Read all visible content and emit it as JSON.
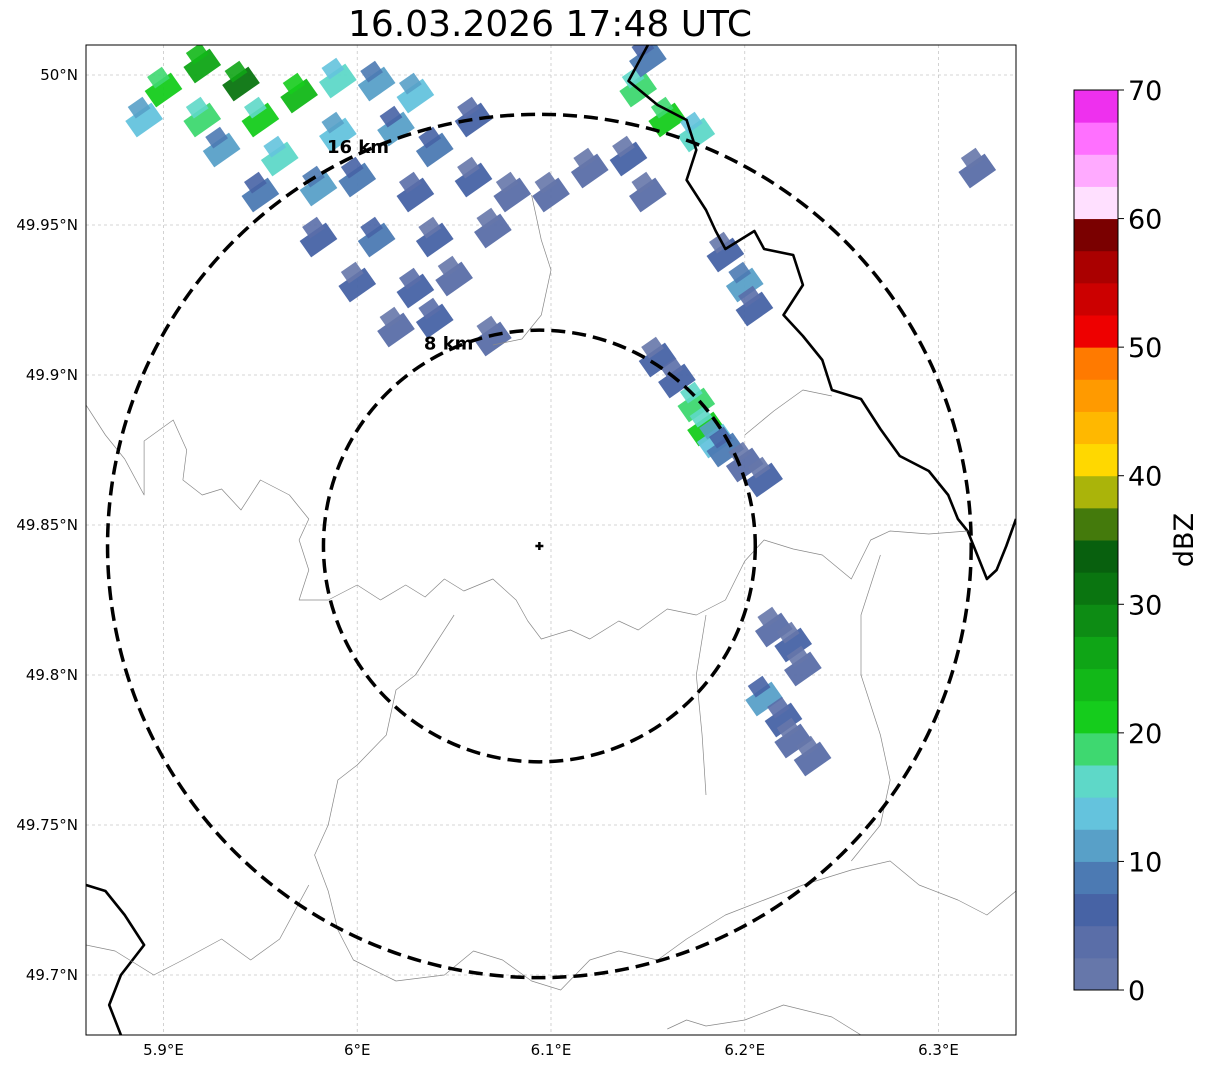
{
  "title": "16.03.2026 17:48 UTC",
  "map": {
    "lon_range": [
      5.86,
      6.34
    ],
    "lat_range": [
      49.68,
      50.01
    ],
    "radar_site": {
      "lon": 6.094,
      "lat": 49.843
    },
    "range_rings": [
      {
        "label": "8 km",
        "radius_km": 8
      },
      {
        "label": "16 km",
        "radius_km": 16
      }
    ],
    "lon_ticks": [
      {
        "value": 5.9,
        "label": "5.9°E"
      },
      {
        "value": 6.0,
        "label": "6°E"
      },
      {
        "value": 6.1,
        "label": "6.1°E"
      },
      {
        "value": 6.2,
        "label": "6.2°E"
      },
      {
        "value": 6.3,
        "label": "6.3°E"
      }
    ],
    "lat_ticks": [
      {
        "value": 50.0,
        "label": "50°N"
      },
      {
        "value": 49.95,
        "label": "49.95°N"
      },
      {
        "value": 49.9,
        "label": "49.9°N"
      },
      {
        "value": 49.85,
        "label": "49.85°N"
      },
      {
        "value": 49.8,
        "label": "49.8°N"
      },
      {
        "value": 49.75,
        "label": "49.75°N"
      },
      {
        "value": 49.7,
        "label": "49.7°N"
      }
    ],
    "grid": true
  },
  "colorbar": {
    "label": "dBZ",
    "min": 0,
    "max": 70,
    "step": 2.5,
    "tick_labels": [
      "0",
      "10",
      "20",
      "30",
      "40",
      "50",
      "60",
      "70"
    ],
    "colors": [
      "#6677aa",
      "#5a6ea8",
      "#4763a5",
      "#4c7ab3",
      "#58a0c8",
      "#64c3dd",
      "#5ed8c8",
      "#3ed870",
      "#15cc1c",
      "#12b818",
      "#0fa516",
      "#0d8c14",
      "#0a7510",
      "#08600e",
      "#447a0c",
      "#aab40a",
      "#ffd800",
      "#ffb800",
      "#ff9a00",
      "#ff7a00",
      "#ee0000",
      "#cc0000",
      "#aa0000",
      "#7a0000",
      "#ffe0ff",
      "#ffaaff",
      "#ff70ff",
      "#ee30ee"
    ]
  },
  "reflectivity_cells": [
    {
      "lon": 5.9,
      "lat": 49.995,
      "dbz": 22
    },
    {
      "lon": 5.92,
      "lat": 50.003,
      "dbz": 26
    },
    {
      "lon": 5.94,
      "lat": 49.997,
      "dbz": 30
    },
    {
      "lon": 5.89,
      "lat": 49.985,
      "dbz": 14
    },
    {
      "lon": 5.92,
      "lat": 49.985,
      "dbz": 18
    },
    {
      "lon": 5.95,
      "lat": 49.985,
      "dbz": 20
    },
    {
      "lon": 5.97,
      "lat": 49.993,
      "dbz": 24
    },
    {
      "lon": 5.99,
      "lat": 49.998,
      "dbz": 16
    },
    {
      "lon": 6.01,
      "lat": 49.997,
      "dbz": 12
    },
    {
      "lon": 6.03,
      "lat": 49.993,
      "dbz": 14
    },
    {
      "lon": 5.93,
      "lat": 49.975,
      "dbz": 12
    },
    {
      "lon": 5.96,
      "lat": 49.972,
      "dbz": 16
    },
    {
      "lon": 5.99,
      "lat": 49.98,
      "dbz": 14
    },
    {
      "lon": 6.02,
      "lat": 49.982,
      "dbz": 10
    },
    {
      "lon": 6.04,
      "lat": 49.975,
      "dbz": 8
    },
    {
      "lon": 6.06,
      "lat": 49.985,
      "dbz": 6
    },
    {
      "lon": 5.95,
      "lat": 49.96,
      "dbz": 8
    },
    {
      "lon": 5.98,
      "lat": 49.962,
      "dbz": 12
    },
    {
      "lon": 6.0,
      "lat": 49.965,
      "dbz": 8
    },
    {
      "lon": 6.03,
      "lat": 49.96,
      "dbz": 6
    },
    {
      "lon": 6.06,
      "lat": 49.965,
      "dbz": 5
    },
    {
      "lon": 6.08,
      "lat": 49.96,
      "dbz": 4
    },
    {
      "lon": 5.98,
      "lat": 49.945,
      "dbz": 6
    },
    {
      "lon": 6.01,
      "lat": 49.945,
      "dbz": 8
    },
    {
      "lon": 6.04,
      "lat": 49.945,
      "dbz": 5
    },
    {
      "lon": 6.07,
      "lat": 49.948,
      "dbz": 4
    },
    {
      "lon": 6.0,
      "lat": 49.93,
      "dbz": 5
    },
    {
      "lon": 6.03,
      "lat": 49.928,
      "dbz": 7
    },
    {
      "lon": 6.05,
      "lat": 49.932,
      "dbz": 4
    },
    {
      "lon": 6.02,
      "lat": 49.915,
      "dbz": 4
    },
    {
      "lon": 6.04,
      "lat": 49.918,
      "dbz": 6
    },
    {
      "lon": 6.07,
      "lat": 49.912,
      "dbz": 3
    },
    {
      "lon": 6.12,
      "lat": 49.968,
      "dbz": 4
    },
    {
      "lon": 6.14,
      "lat": 49.972,
      "dbz": 5
    },
    {
      "lon": 6.1,
      "lat": 49.96,
      "dbz": 3
    },
    {
      "lon": 6.15,
      "lat": 49.96,
      "dbz": 3
    },
    {
      "lon": 6.145,
      "lat": 49.995,
      "dbz": 18
    },
    {
      "lon": 6.16,
      "lat": 49.985,
      "dbz": 22
    },
    {
      "lon": 6.175,
      "lat": 49.98,
      "dbz": 16
    },
    {
      "lon": 6.15,
      "lat": 50.005,
      "dbz": 8
    },
    {
      "lon": 6.19,
      "lat": 49.94,
      "dbz": 5
    },
    {
      "lon": 6.2,
      "lat": 49.93,
      "dbz": 12
    },
    {
      "lon": 6.205,
      "lat": 49.922,
      "dbz": 6
    },
    {
      "lon": 6.155,
      "lat": 49.905,
      "dbz": 5
    },
    {
      "lon": 6.165,
      "lat": 49.898,
      "dbz": 6
    },
    {
      "lon": 6.175,
      "lat": 49.89,
      "dbz": 18
    },
    {
      "lon": 6.18,
      "lat": 49.882,
      "dbz": 20
    },
    {
      "lon": 6.185,
      "lat": 49.878,
      "dbz": 14
    },
    {
      "lon": 6.19,
      "lat": 49.875,
      "dbz": 8
    },
    {
      "lon": 6.2,
      "lat": 49.87,
      "dbz": 4
    },
    {
      "lon": 6.21,
      "lat": 49.865,
      "dbz": 5
    },
    {
      "lon": 6.215,
      "lat": 49.815,
      "dbz": 4
    },
    {
      "lon": 6.225,
      "lat": 49.81,
      "dbz": 5
    },
    {
      "lon": 6.23,
      "lat": 49.802,
      "dbz": 3
    },
    {
      "lon": 6.21,
      "lat": 49.792,
      "dbz": 10
    },
    {
      "lon": 6.22,
      "lat": 49.785,
      "dbz": 6
    },
    {
      "lon": 6.225,
      "lat": 49.778,
      "dbz": 4
    },
    {
      "lon": 6.235,
      "lat": 49.772,
      "dbz": 3
    },
    {
      "lon": 6.32,
      "lat": 49.968,
      "dbz": 4
    }
  ],
  "borders": [
    {
      "kind": "country",
      "points": [
        [
          6.15,
          50.01
        ],
        [
          6.14,
          49.998
        ],
        [
          6.155,
          49.99
        ],
        [
          6.17,
          49.985
        ],
        [
          6.175,
          49.975
        ],
        [
          6.17,
          49.965
        ],
        [
          6.18,
          49.955
        ],
        [
          6.185,
          49.948
        ],
        [
          6.19,
          49.942
        ],
        [
          6.205,
          49.948
        ],
        [
          6.21,
          49.942
        ],
        [
          6.225,
          49.94
        ],
        [
          6.23,
          49.93
        ],
        [
          6.22,
          49.92
        ],
        [
          6.23,
          49.913
        ],
        [
          6.24,
          49.905
        ],
        [
          6.245,
          49.895
        ],
        [
          6.26,
          49.892
        ],
        [
          6.27,
          49.882
        ],
        [
          6.28,
          49.873
        ],
        [
          6.295,
          49.868
        ],
        [
          6.305,
          49.86
        ],
        [
          6.31,
          49.852
        ],
        [
          6.315,
          49.848
        ],
        [
          6.32,
          49.84
        ],
        [
          6.325,
          49.832
        ],
        [
          6.33,
          49.835
        ],
        [
          6.335,
          49.843
        ],
        [
          6.34,
          49.852
        ]
      ]
    },
    {
      "kind": "country",
      "points": [
        [
          5.86,
          49.73
        ],
        [
          5.87,
          49.728
        ],
        [
          5.88,
          49.72
        ],
        [
          5.89,
          49.71
        ],
        [
          5.878,
          49.7
        ],
        [
          5.872,
          49.69
        ],
        [
          5.878,
          49.68
        ]
      ]
    },
    {
      "kind": "district",
      "points": [
        [
          5.86,
          49.89
        ],
        [
          5.87,
          49.88
        ],
        [
          5.88,
          49.872
        ],
        [
          5.89,
          49.86
        ],
        [
          5.89,
          49.878
        ],
        [
          5.905,
          49.885
        ],
        [
          5.912,
          49.875
        ],
        [
          5.91,
          49.865
        ],
        [
          5.92,
          49.86
        ],
        [
          5.93,
          49.862
        ],
        [
          5.94,
          49.855
        ],
        [
          5.95,
          49.865
        ],
        [
          5.965,
          49.86
        ],
        [
          5.975,
          49.852
        ],
        [
          5.97,
          49.845
        ],
        [
          5.975,
          49.835
        ],
        [
          5.97,
          49.825
        ],
        [
          5.985,
          49.825
        ],
        [
          6.0,
          49.83
        ],
        [
          6.012,
          49.825
        ],
        [
          6.025,
          49.83
        ],
        [
          6.035,
          49.826
        ],
        [
          6.045,
          49.832
        ],
        [
          6.055,
          49.828
        ],
        [
          6.07,
          49.832
        ],
        [
          6.082,
          49.825
        ],
        [
          6.088,
          49.818
        ],
        [
          6.095,
          49.812
        ],
        [
          6.11,
          49.815
        ],
        [
          6.12,
          49.812
        ],
        [
          6.135,
          49.818
        ],
        [
          6.145,
          49.815
        ],
        [
          6.16,
          49.822
        ],
        [
          6.175,
          49.82
        ],
        [
          6.19,
          49.825
        ]
      ]
    },
    {
      "kind": "district",
      "points": [
        [
          6.19,
          49.825
        ],
        [
          6.2,
          49.838
        ],
        [
          6.21,
          49.845
        ],
        [
          6.225,
          49.842
        ],
        [
          6.24,
          49.84
        ],
        [
          6.255,
          49.832
        ],
        [
          6.265,
          49.845
        ],
        [
          6.275,
          49.848
        ],
        [
          6.295,
          49.847
        ],
        [
          6.315,
          49.848
        ]
      ]
    },
    {
      "kind": "district",
      "points": [
        [
          6.09,
          49.96
        ],
        [
          6.095,
          49.945
        ],
        [
          6.1,
          49.935
        ],
        [
          6.095,
          49.92
        ],
        [
          6.085,
          49.912
        ],
        [
          6.07,
          49.91
        ]
      ]
    },
    {
      "kind": "district",
      "points": [
        [
          6.2,
          49.88
        ],
        [
          6.215,
          49.888
        ],
        [
          6.23,
          49.895
        ],
        [
          6.245,
          49.893
        ]
      ]
    },
    {
      "kind": "district",
      "points": [
        [
          6.05,
          49.82
        ],
        [
          6.04,
          49.81
        ],
        [
          6.03,
          49.8
        ],
        [
          6.02,
          49.795
        ],
        [
          6.015,
          49.78
        ],
        [
          6.0,
          49.77
        ],
        [
          5.99,
          49.765
        ],
        [
          5.985,
          49.75
        ],
        [
          5.978,
          49.74
        ],
        [
          5.985,
          49.728
        ],
        [
          5.99,
          49.715
        ],
        [
          5.998,
          49.705
        ],
        [
          6.02,
          49.698
        ],
        [
          6.045,
          49.7
        ],
        [
          6.06,
          49.708
        ],
        [
          6.075,
          49.705
        ],
        [
          6.09,
          49.698
        ],
        [
          6.105,
          49.695
        ],
        [
          6.12,
          49.705
        ],
        [
          6.135,
          49.708
        ],
        [
          6.155,
          49.705
        ],
        [
          6.17,
          49.712
        ],
        [
          6.19,
          49.72
        ],
        [
          6.21,
          49.725
        ],
        [
          6.23,
          49.73
        ],
        [
          6.255,
          49.735
        ],
        [
          6.275,
          49.738
        ],
        [
          6.29,
          49.73
        ],
        [
          6.31,
          49.725
        ],
        [
          6.325,
          49.72
        ],
        [
          6.34,
          49.728
        ]
      ]
    },
    {
      "kind": "district",
      "points": [
        [
          5.86,
          49.71
        ],
        [
          5.875,
          49.708
        ],
        [
          5.895,
          49.7
        ],
        [
          5.91,
          49.705
        ],
        [
          5.93,
          49.712
        ],
        [
          5.945,
          49.705
        ],
        [
          5.96,
          49.712
        ],
        [
          5.975,
          49.73
        ]
      ]
    },
    {
      "kind": "district",
      "points": [
        [
          6.16,
          49.682
        ],
        [
          6.17,
          49.685
        ],
        [
          6.18,
          49.683
        ],
        [
          6.2,
          49.685
        ],
        [
          6.22,
          49.69
        ],
        [
          6.245,
          49.686
        ],
        [
          6.26,
          49.68
        ]
      ]
    },
    {
      "kind": "district",
      "points": [
        [
          6.27,
          49.84
        ],
        [
          6.26,
          49.82
        ],
        [
          6.26,
          49.8
        ],
        [
          6.27,
          49.78
        ],
        [
          6.275,
          49.765
        ],
        [
          6.27,
          49.75
        ],
        [
          6.255,
          49.738
        ]
      ]
    },
    {
      "kind": "district",
      "points": [
        [
          6.18,
          49.82
        ],
        [
          6.175,
          49.8
        ],
        [
          6.178,
          49.78
        ],
        [
          6.18,
          49.76
        ]
      ]
    }
  ]
}
